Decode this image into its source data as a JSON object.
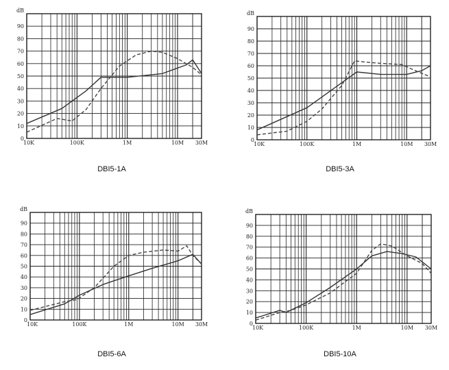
{
  "chart_data": [
    {
      "type": "line",
      "title": "DBI5-1A",
      "x_scale": "log",
      "xlim": [
        10000,
        30000000
      ],
      "ylim": [
        0,
        100
      ],
      "ylabel": "dB",
      "x_ticks": [
        "10K",
        "100K",
        "1M",
        "10M",
        "30M"
      ],
      "y_ticks": [
        "0",
        "10",
        "20",
        "30",
        "40",
        "50",
        "60",
        "70",
        "80",
        "90"
      ],
      "grid": true,
      "series": [
        {
          "style": "solid",
          "color": "#333333",
          "x": [
            10000,
            50000,
            150000,
            300000,
            1000000,
            5000000,
            15000000,
            20000000,
            30000000
          ],
          "y": [
            12,
            24,
            38,
            49,
            49,
            52,
            59,
            63,
            52
          ]
        },
        {
          "style": "dashed",
          "color": "#444444",
          "x": [
            10000,
            40000,
            80000,
            150000,
            300000,
            700000,
            1500000,
            3000000,
            5000000,
            10000000,
            20000000,
            30000000
          ],
          "y": [
            5,
            16,
            14,
            23,
            40,
            58,
            67,
            70,
            69,
            64,
            57,
            51
          ]
        }
      ]
    },
    {
      "type": "line",
      "title": "DBI5-3A",
      "x_scale": "log",
      "xlim": [
        10000,
        30000000
      ],
      "ylim": [
        0,
        100
      ],
      "ylabel": "dB",
      "x_ticks": [
        "10K",
        "100K",
        "1M",
        "10M",
        "30M"
      ],
      "y_ticks": [
        "0",
        "10",
        "20",
        "30",
        "40",
        "50",
        "60",
        "70",
        "80",
        "90"
      ],
      "grid": true,
      "series": [
        {
          "style": "solid",
          "color": "#333333",
          "x": [
            10000,
            100000,
            1000000,
            3000000,
            10000000,
            20000000,
            30000000
          ],
          "y": [
            8,
            26,
            55,
            53,
            53,
            56,
            60
          ]
        },
        {
          "style": "dashed",
          "color": "#444444",
          "x": [
            10000,
            40000,
            100000,
            200000,
            500000,
            900000,
            1500000,
            3000000,
            8000000,
            15000000,
            30000000
          ],
          "y": [
            4,
            7,
            15,
            25,
            44,
            64,
            63,
            62,
            61,
            56,
            51
          ]
        }
      ]
    },
    {
      "type": "line",
      "title": "DBI5-6A",
      "x_scale": "log",
      "xlim": [
        10000,
        30000000
      ],
      "ylim": [
        0,
        100
      ],
      "ylabel": "dB",
      "x_ticks": [
        "10K",
        "100K",
        "1M",
        "10M",
        "30M"
      ],
      "y_ticks": [
        "0",
        "10",
        "20",
        "30",
        "40",
        "50",
        "60",
        "70",
        "80",
        "90"
      ],
      "grid": true,
      "series": [
        {
          "style": "solid",
          "color": "#333333",
          "x": [
            10000,
            50000,
            100000,
            300000,
            1000000,
            3000000,
            10000000,
            20000000,
            30000000
          ],
          "y": [
            5,
            15,
            23,
            33,
            41,
            48,
            55,
            61,
            52
          ]
        },
        {
          "style": "dashed",
          "color": "#444444",
          "x": [
            10000,
            50000,
            90000,
            200000,
            500000,
            1000000,
            2000000,
            5000000,
            10000000,
            15000000,
            20000000,
            30000000
          ],
          "y": [
            9,
            17,
            19,
            30,
            50,
            60,
            63,
            65,
            64,
            69,
            60,
            52
          ]
        }
      ]
    },
    {
      "type": "line",
      "title": "DBI5-10A",
      "x_scale": "log",
      "xlim": [
        10000,
        30000000
      ],
      "ylim": [
        0,
        100
      ],
      "ylabel": "dB",
      "x_ticks": [
        "10K",
        "100K",
        "1M",
        "10M",
        "30M"
      ],
      "y_ticks": [
        "0",
        "10",
        "20",
        "30",
        "40",
        "50",
        "60",
        "70",
        "80",
        "90"
      ],
      "grid": true,
      "series": [
        {
          "style": "solid",
          "color": "#333333",
          "x": [
            10000,
            30000,
            40000,
            100000,
            300000,
            1000000,
            2000000,
            4000000,
            8000000,
            15000000,
            30000000
          ],
          "y": [
            5,
            12,
            10,
            19,
            33,
            50,
            62,
            66,
            64,
            61,
            50
          ]
        },
        {
          "style": "dashed",
          "color": "#444444",
          "x": [
            10000,
            30000,
            50000,
            100000,
            300000,
            1000000,
            2000000,
            3000000,
            5000000,
            10000000,
            20000000,
            30000000
          ],
          "y": [
            3,
            10,
            12,
            17,
            28,
            46,
            67,
            73,
            71,
            62,
            55,
            46
          ]
        }
      ]
    }
  ]
}
